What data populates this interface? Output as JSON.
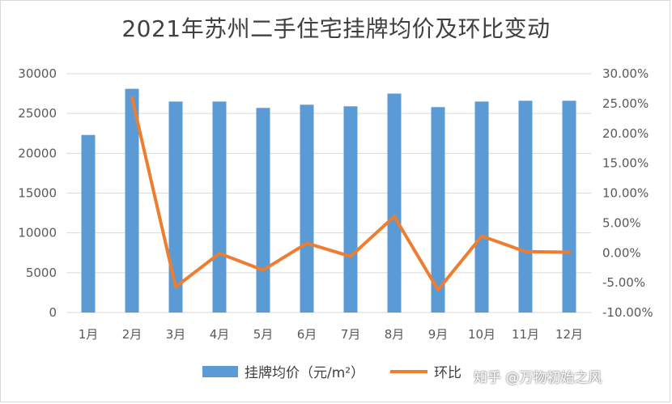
{
  "chart_data": {
    "type": "bar",
    "title": "2021年苏州二手住宅挂牌均价及环比变动",
    "categories": [
      "1月",
      "2月",
      "3月",
      "4月",
      "5月",
      "6月",
      "7月",
      "8月",
      "9月",
      "10月",
      "11月",
      "12月"
    ],
    "series": [
      {
        "name": "挂牌均价（元/m²）",
        "type": "bar",
        "axis": "left",
        "values": [
          22300,
          28100,
          26500,
          26500,
          25700,
          26100,
          25900,
          27500,
          25800,
          26500,
          26600,
          26600
        ]
      },
      {
        "name": "环比",
        "type": "line",
        "axis": "right",
        "values": [
          null,
          26.0,
          -5.7,
          -0.1,
          -2.9,
          1.6,
          -0.6,
          6.1,
          -6.2,
          2.8,
          0.2,
          0.1
        ]
      }
    ],
    "y_left": {
      "ylim": [
        0,
        30000
      ],
      "ticks": [
        "0",
        "5000",
        "10000",
        "15000",
        "20000",
        "25000",
        "30000"
      ]
    },
    "y_right": {
      "ylim": [
        -10,
        30
      ],
      "ticks": [
        "-10.00%",
        "-5.00%",
        "0.00%",
        "5.00%",
        "10.00%",
        "15.00%",
        "20.00%",
        "25.00%",
        "30.00%"
      ]
    },
    "grid": true,
    "legend_position": "bottom",
    "colors": {
      "bar": "#5b9bd5",
      "line": "#ed7d31"
    }
  },
  "watermark": "知乎 @万物初始之风"
}
